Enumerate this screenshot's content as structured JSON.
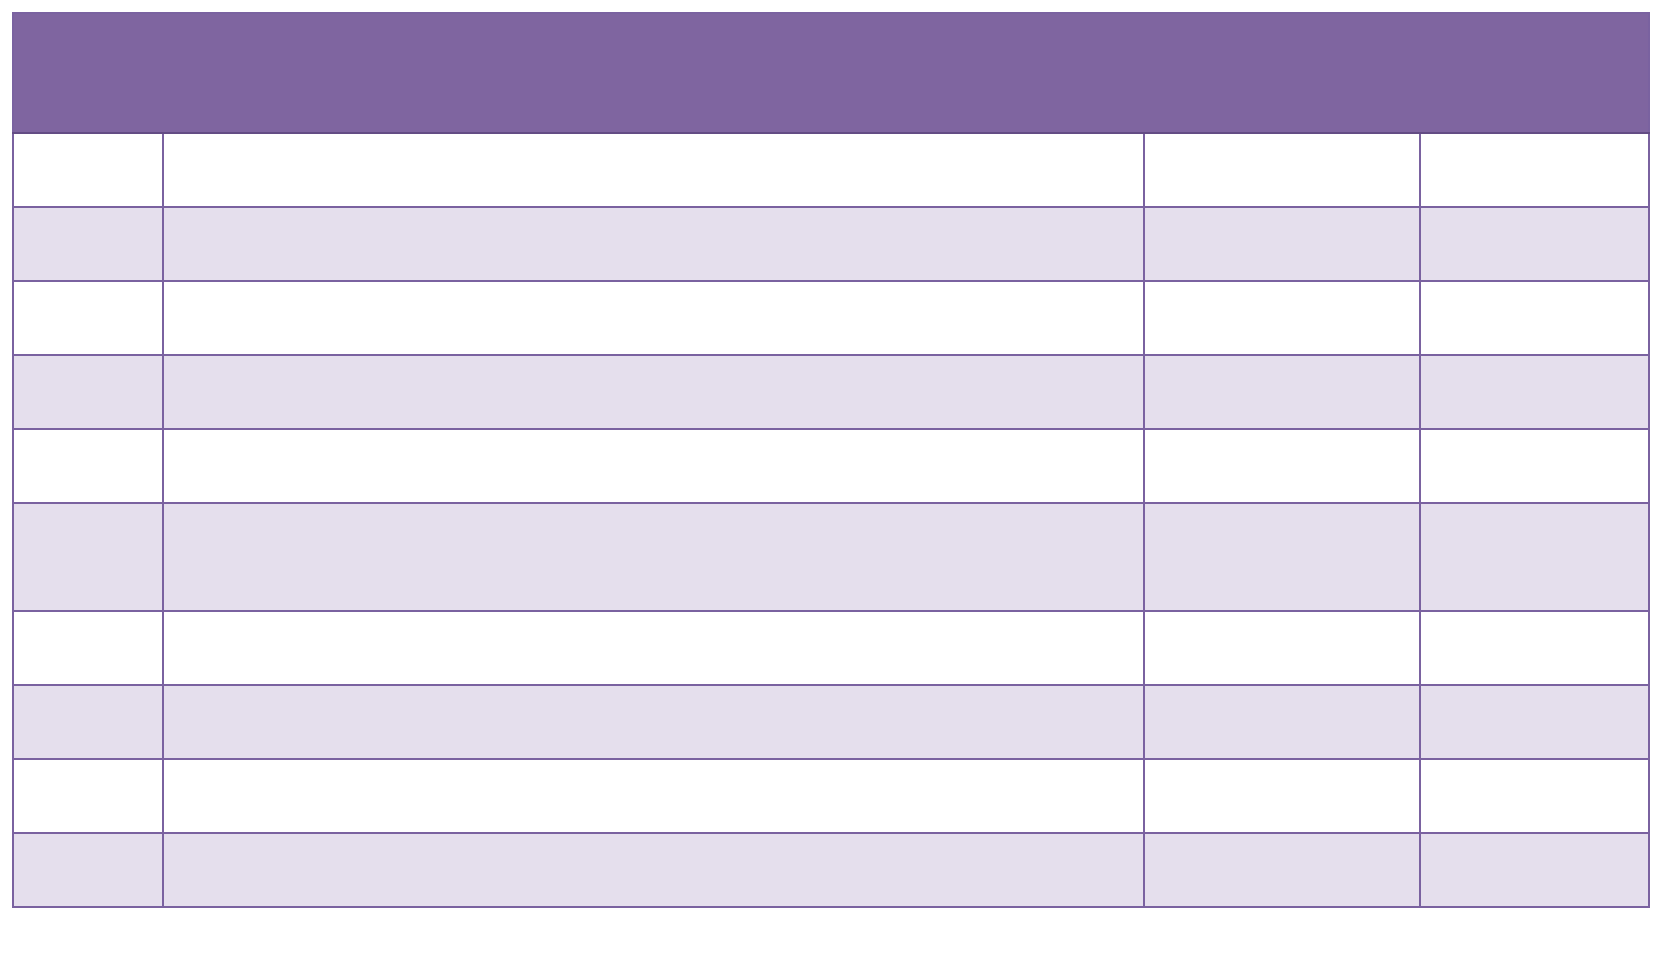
{
  "colors": {
    "header_bg": "#7f65a0",
    "border": "#634c84",
    "row_alt_bg": "#e5dfed",
    "row_bg": "#ffffff"
  },
  "table": {
    "header": "",
    "columns": 4,
    "rows": [
      [
        "",
        "",
        "",
        ""
      ],
      [
        "",
        "",
        "",
        ""
      ],
      [
        "",
        "",
        "",
        ""
      ],
      [
        "",
        "",
        "",
        ""
      ],
      [
        "",
        "",
        "",
        ""
      ],
      [
        "",
        "",
        "",
        ""
      ],
      [
        "",
        "",
        "",
        ""
      ],
      [
        "",
        "",
        "",
        ""
      ],
      [
        "",
        "",
        "",
        ""
      ],
      [
        "",
        "",
        "",
        ""
      ]
    ]
  }
}
